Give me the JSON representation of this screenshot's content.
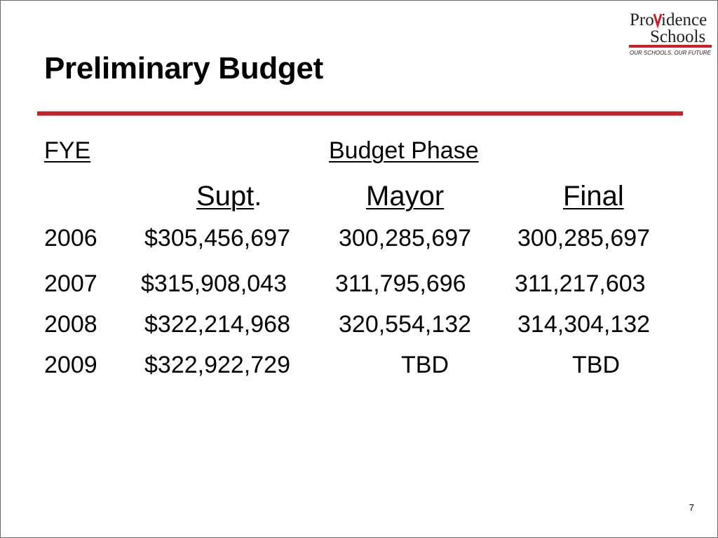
{
  "logo": {
    "line1_a": "Pro",
    "line1_b": "idence",
    "line2": "Schools",
    "tagline": "OUR SCHOOLS. OUR FUTURE"
  },
  "title": "Preliminary Budget",
  "colors": {
    "accent": "#cc1f27"
  },
  "headers": {
    "fye": "FYE",
    "phase": "Budget Phase",
    "supt": "Supt",
    "supt_period": ".",
    "mayor": "Mayor",
    "final": "Final"
  },
  "rows": [
    {
      "year": "2006",
      "supt": "$305,456,697",
      "mayor": "300,285,697",
      "final": "300,285,697"
    },
    {
      "year": "2007",
      "supt": "$315,908,043",
      "mayor": "311,795,696",
      "final": "311,217,603"
    },
    {
      "year": "2008",
      "supt": "$322,214,968",
      "mayor": "320,554,132",
      "final": "314,304,132"
    },
    {
      "year": "2009",
      "supt": "$322,922,729",
      "mayor": "TBD",
      "final": "TBD"
    }
  ],
  "page_number": "7"
}
